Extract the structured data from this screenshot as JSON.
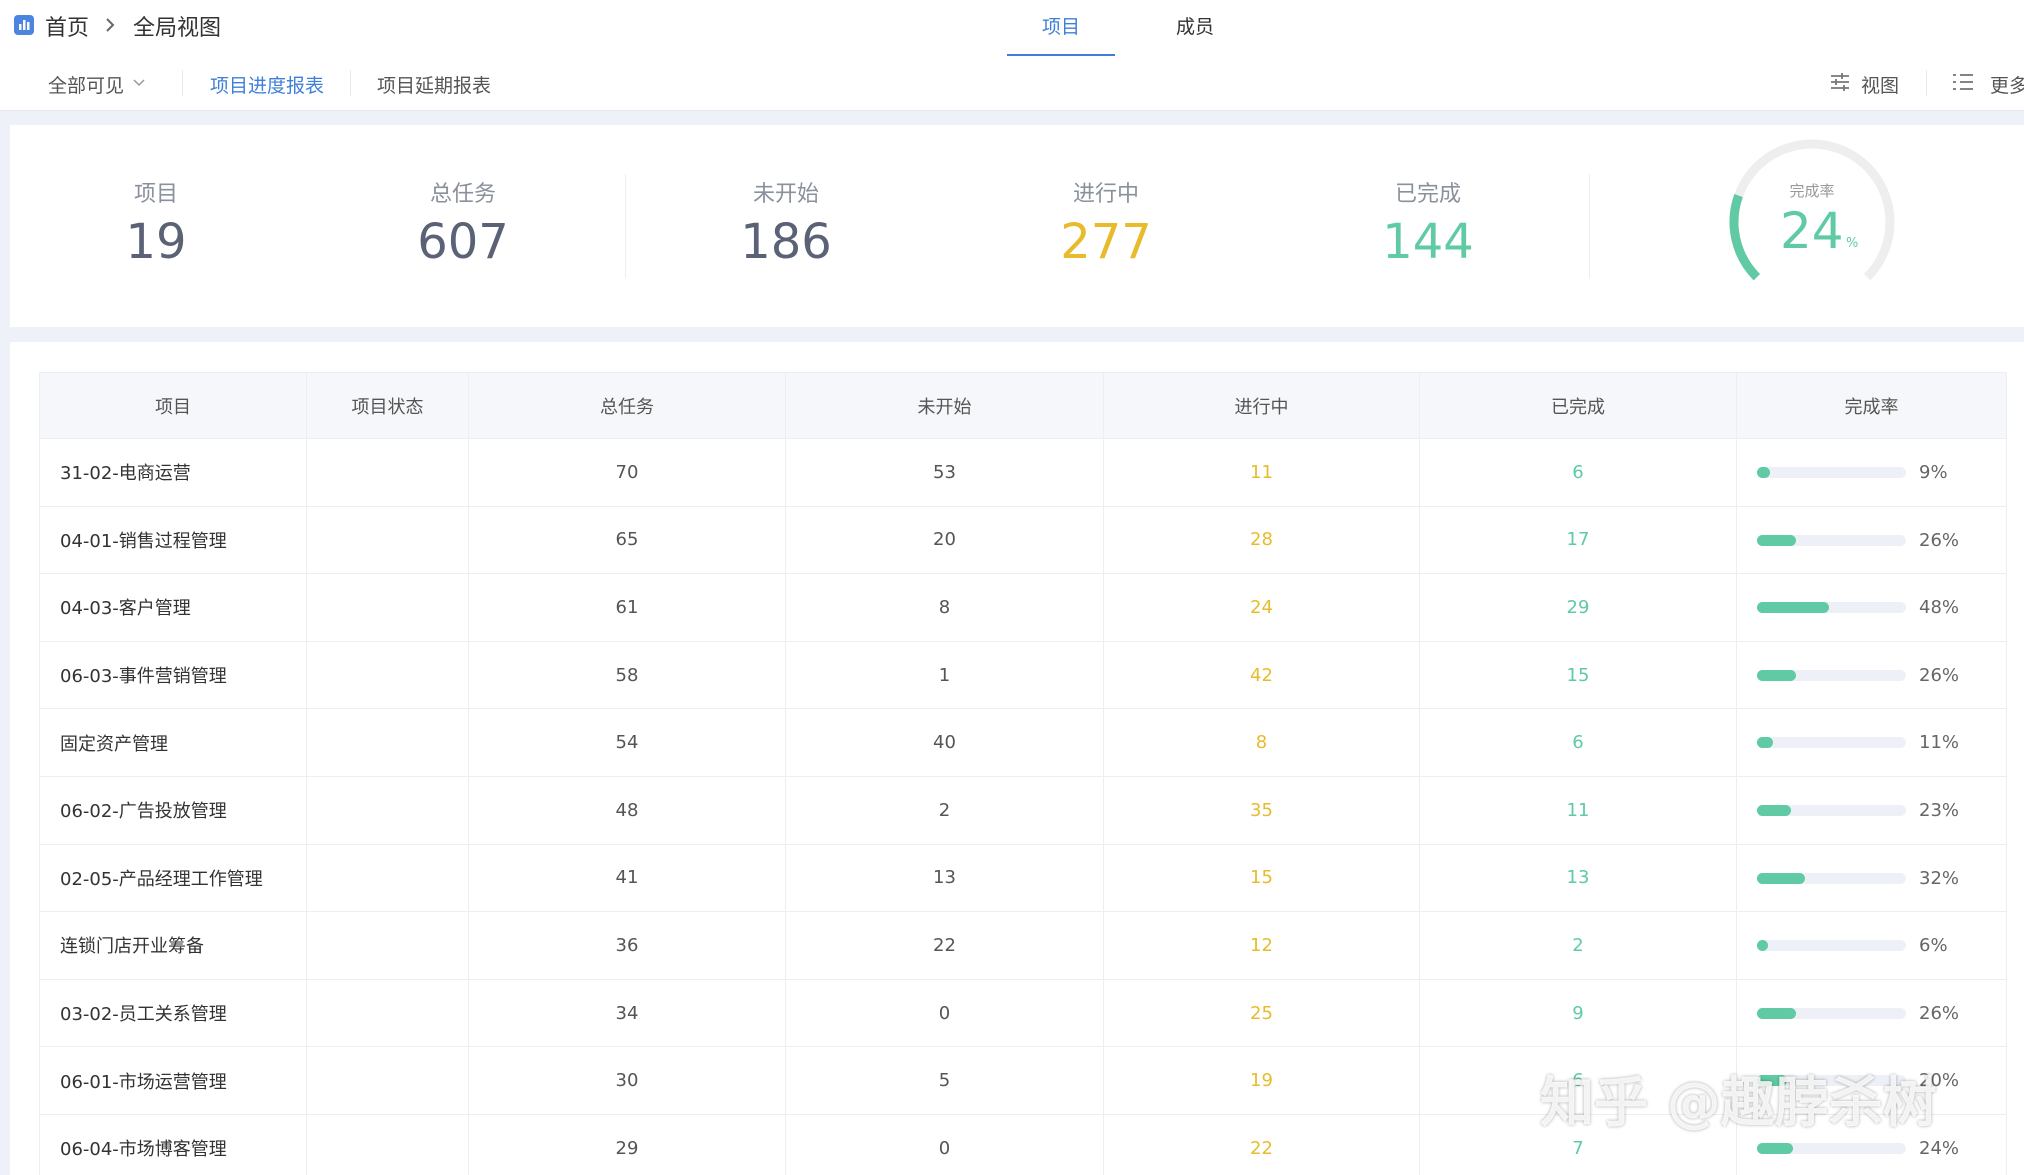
{
  "breadcrumb": {
    "home": "首页",
    "current": "全局视图"
  },
  "tabs": [
    "项目",
    "成员"
  ],
  "active_tab": 0,
  "toolbar": {
    "filter": "全部可见",
    "reports": [
      "项目进度报表",
      "项目延期报表"
    ],
    "active_report": 0,
    "actions": [
      "视图",
      "更多"
    ]
  },
  "summary": [
    {
      "label": "项目",
      "value": 19,
      "color": "#5b6275"
    },
    {
      "label": "总任务",
      "value": 607,
      "color": "#5b6275"
    },
    {
      "label": "未开始",
      "value": 186,
      "color": "#5b6275"
    },
    {
      "label": "进行中",
      "value": 277,
      "color": "#e8bb2c"
    },
    {
      "label": "已完成",
      "value": 144,
      "color": "#5fcaa3"
    }
  ],
  "completion": {
    "label": "完成率",
    "value": 24,
    "unit": "%"
  },
  "table": {
    "columns": [
      "项目",
      "项目状态",
      "总任务",
      "未开始",
      "进行中",
      "已完成",
      "完成率"
    ],
    "rows": [
      {
        "name": "31-02-电商运营",
        "total": 70,
        "not_started": 53,
        "in_progress": 11,
        "done": 6,
        "rate": 9,
        "rate_label": "9%"
      },
      {
        "name": "04-01-销售过程管理",
        "total": 65,
        "not_started": 20,
        "in_progress": 28,
        "done": 17,
        "rate": 26,
        "rate_label": "26%"
      },
      {
        "name": "04-03-客户管理",
        "total": 61,
        "not_started": 8,
        "in_progress": 24,
        "done": 29,
        "rate": 48,
        "rate_label": "48%"
      },
      {
        "name": "06-03-事件营销管理",
        "total": 58,
        "not_started": 1,
        "in_progress": 42,
        "done": 15,
        "rate": 26,
        "rate_label": "26%"
      },
      {
        "name": "固定资产管理",
        "total": 54,
        "not_started": 40,
        "in_progress": 8,
        "done": 6,
        "rate": 11,
        "rate_label": "11%"
      },
      {
        "name": "06-02-广告投放管理",
        "total": 48,
        "not_started": 2,
        "in_progress": 35,
        "done": 11,
        "rate": 23,
        "rate_label": "23%"
      },
      {
        "name": "02-05-产品经理工作管理",
        "total": 41,
        "not_started": 13,
        "in_progress": 15,
        "done": 13,
        "rate": 32,
        "rate_label": "32%"
      },
      {
        "name": "连锁门店开业筹备",
        "total": 36,
        "not_started": 22,
        "in_progress": 12,
        "done": 2,
        "rate": 6,
        "rate_label": "6%"
      },
      {
        "name": "03-02-员工关系管理",
        "total": 34,
        "not_started": 0,
        "in_progress": 25,
        "done": 9,
        "rate": 26,
        "rate_label": "26%"
      },
      {
        "name": "06-01-市场运营管理",
        "total": 30,
        "not_started": 5,
        "in_progress": 19,
        "done": 6,
        "rate": 20,
        "rate_label": "20%"
      },
      {
        "name": "06-04-市场博客管理",
        "total": 29,
        "not_started": 0,
        "in_progress": 22,
        "done": 7,
        "rate": 24,
        "rate_label": "24%"
      }
    ]
  },
  "watermark": "知乎 @趣脖杀树"
}
